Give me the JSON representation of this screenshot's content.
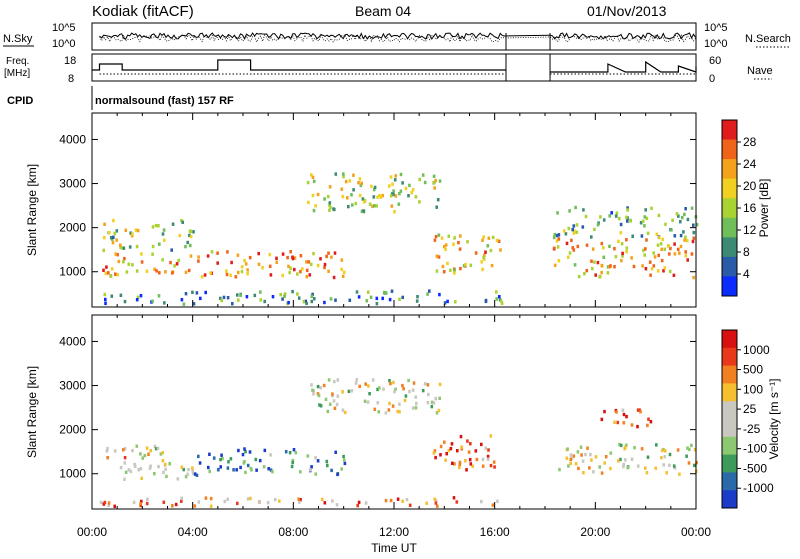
{
  "header": {
    "station": "Kodiak (fitACF)",
    "beam": "Beam 04",
    "date": "01/Nov/2013"
  },
  "sky_panel": {
    "left_label": "N.Sky",
    "right_label": "N.Search",
    "left_ticks": [
      "10^5",
      "10^0"
    ],
    "right_ticks": [
      "10^5",
      "10^0"
    ]
  },
  "freq_panel": {
    "left_label_line1": "Freq.",
    "left_label_line2": "[MHz]",
    "right_label": "Nave",
    "left_ticks": [
      "18",
      "8"
    ],
    "right_ticks": [
      "60",
      "0"
    ]
  },
  "cpid": {
    "label": "CPID",
    "value": "normalsound (fast) 157 RF"
  },
  "time_axis": {
    "label": "Time UT",
    "ticks": [
      "00:00",
      "04:00",
      "08:00",
      "12:00",
      "16:00",
      "20:00",
      "00:00"
    ]
  },
  "chart_data": [
    {
      "type": "heatmap",
      "name": "Power",
      "ylabel": "Slant Range [km]",
      "xlabel": "Time UT",
      "y_ticks": [
        "1000",
        "2000",
        "3000",
        "4000"
      ],
      "ylim": [
        200,
        4600
      ],
      "xlim_hours": [
        0,
        24
      ],
      "data_gap_hours": [
        16.5,
        18.2
      ],
      "colorbar": {
        "label": "Power [dB]",
        "ticks": [
          "4",
          "8",
          "12",
          "16",
          "20",
          "24",
          "28"
        ],
        "colors": [
          "#0b2cff",
          "#2a5ba8",
          "#3c8a74",
          "#6fbe5a",
          "#a9d233",
          "#f0d020",
          "#f4a21b",
          "#f0631b",
          "#e01b1b"
        ]
      },
      "regions": [
        {
          "t0": 0.4,
          "t1": 10.0,
          "r0": 900,
          "r1": 1500,
          "level": 0.75
        },
        {
          "t0": 0.4,
          "t1": 4.0,
          "r0": 1500,
          "r1": 2200,
          "level": 0.45
        },
        {
          "t0": 8.5,
          "t1": 14.0,
          "r0": 2400,
          "r1": 3300,
          "level": 0.5
        },
        {
          "t0": 13.5,
          "t1": 16.3,
          "r0": 1000,
          "r1": 1900,
          "level": 0.65
        },
        {
          "t0": 0.3,
          "t1": 16.3,
          "r0": 300,
          "r1": 600,
          "level": 0.25
        },
        {
          "t0": 18.3,
          "t1": 24.0,
          "r0": 900,
          "r1": 1800,
          "level": 0.7
        },
        {
          "t0": 18.3,
          "t1": 24.0,
          "r0": 1800,
          "r1": 2500,
          "level": 0.35
        }
      ]
    },
    {
      "type": "heatmap",
      "name": "Velocity",
      "ylabel": "Slant Range [km]",
      "xlabel": "Time UT",
      "y_ticks": [
        "1000",
        "2000",
        "3000",
        "4000"
      ],
      "ylim": [
        200,
        4600
      ],
      "xlim_hours": [
        0,
        24
      ],
      "data_gap_hours": [
        16.5,
        18.2
      ],
      "colorbar": {
        "label": "Velocity [m s⁻¹]",
        "ticks": [
          "1000",
          "500",
          "100",
          "25",
          "-25",
          "-100",
          "-500",
          "-1000"
        ],
        "colors": [
          "#1b3cc8",
          "#2a6aa8",
          "#3c9a5a",
          "#8cc870",
          "#c8c8c0",
          "#c8c8c0",
          "#f4c030",
          "#f08020",
          "#e83a1a",
          "#d81010"
        ]
      },
      "regions": [
        {
          "t0": 0.4,
          "t1": 4.0,
          "r0": 900,
          "r1": 1700,
          "level": 0.55
        },
        {
          "t0": 4.0,
          "t1": 10.0,
          "r0": 1000,
          "r1": 1600,
          "level": 0.2
        },
        {
          "t0": 8.5,
          "t1": 14.0,
          "r0": 2400,
          "r1": 3200,
          "level": 0.5
        },
        {
          "t0": 13.5,
          "t1": 16.3,
          "r0": 1100,
          "r1": 1900,
          "level": 0.8
        },
        {
          "t0": 18.3,
          "t1": 24.0,
          "r0": 1000,
          "r1": 1700,
          "level": 0.5
        },
        {
          "t0": 20.0,
          "t1": 22.5,
          "r0": 2100,
          "r1": 2500,
          "level": 0.85
        },
        {
          "t0": 0.3,
          "t1": 16.3,
          "r0": 300,
          "r1": 500,
          "level": 0.7
        }
      ]
    }
  ]
}
